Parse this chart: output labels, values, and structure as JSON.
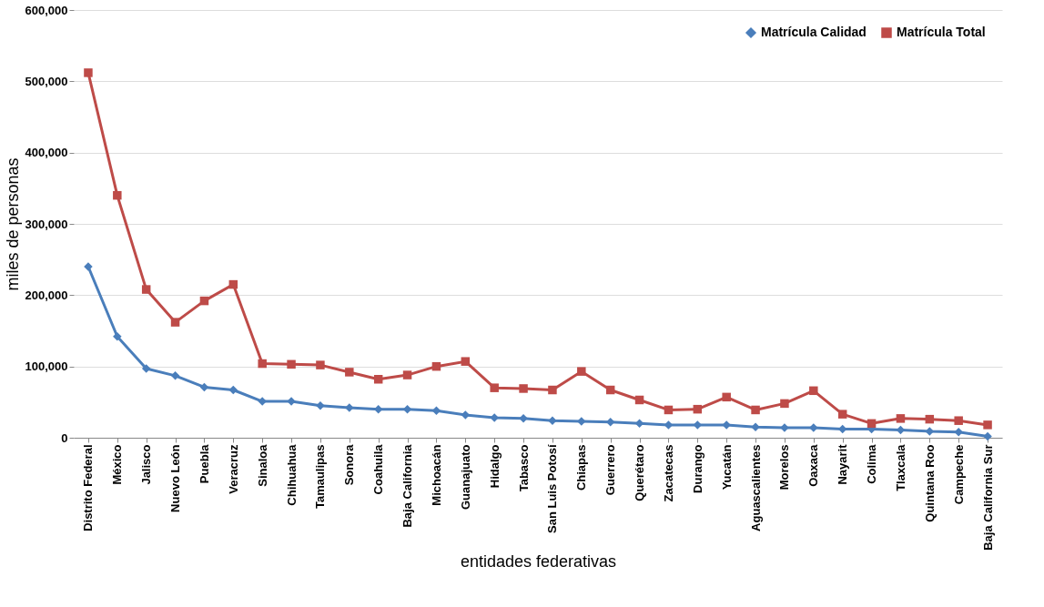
{
  "chart_data": {
    "type": "line",
    "xlabel": "entidades federativas",
    "ylabel": "miles de personas",
    "categories": [
      "Distrito Federal",
      "México",
      "Jalisco",
      "Nuevo León",
      "Puebla",
      "Veracruz",
      "Sinaloa",
      "Chihuahua",
      "Tamaulipas",
      "Sonora",
      "Coahuila",
      "Baja California",
      "Michoacán",
      "Guanajuato",
      "Hidalgo",
      "Tabasco",
      "San Luis Potosí",
      "Chiapas",
      "Guerrero",
      "Querétaro",
      "Zacatecas",
      "Durango",
      "Yucatán",
      "Aguascalientes",
      "Morelos",
      "Oaxaca",
      "Nayarit",
      "Colima",
      "Tlaxcala",
      "Quintana Roo",
      "Campeche",
      "Baja California Sur"
    ],
    "series": [
      {
        "name": "Matrícula  Calidad",
        "color": "#4a7ebb",
        "marker": "diamond",
        "values": [
          240000,
          142000,
          97000,
          87000,
          71000,
          67000,
          51000,
          51000,
          45000,
          42000,
          40000,
          40000,
          38000,
          32000,
          28000,
          27000,
          24000,
          23000,
          22000,
          20000,
          18000,
          18000,
          18000,
          15000,
          14000,
          14000,
          12000,
          12000,
          11000,
          9000,
          8000,
          2000
        ]
      },
      {
        "name": "Matrícula Total",
        "color": "#be4b48",
        "marker": "square",
        "values": [
          512000,
          340000,
          208000,
          162000,
          192000,
          215000,
          104000,
          103000,
          102000,
          92000,
          82000,
          88000,
          100000,
          107000,
          70000,
          69000,
          67000,
          93000,
          67000,
          53000,
          39000,
          40000,
          57000,
          39000,
          48000,
          66000,
          33000,
          20000,
          27000,
          26000,
          24000,
          18000
        ]
      }
    ],
    "ylim": [
      0,
      600000
    ],
    "yticks": [
      0,
      {
        "value": 100000,
        "label": "100,000"
      },
      {
        "value": 200000,
        "label": "200,000"
      },
      {
        "value": 300000,
        "label": "300,000"
      },
      {
        "value": 400000,
        "label": "400,000"
      },
      {
        "value": 500000,
        "label": "500,000"
      },
      {
        "value": 600000,
        "label": "600,000"
      }
    ],
    "grid": "y",
    "legend": "top right",
    "line_style": "solid"
  }
}
